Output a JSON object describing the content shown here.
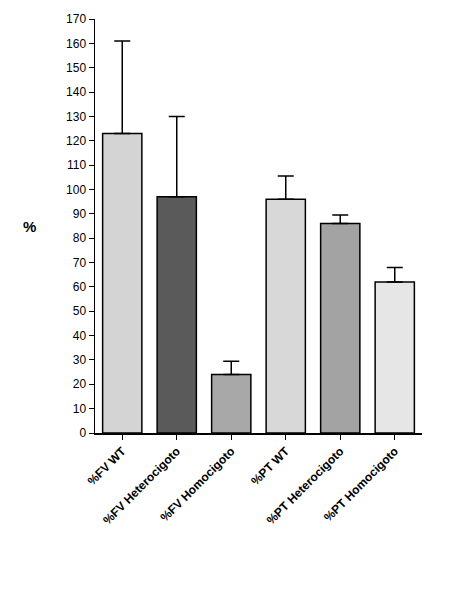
{
  "chart_data": {
    "type": "bar",
    "categories": [
      "%FV WT",
      "%FV Heterocigoto",
      "%FV Homocigoto",
      "%PT WT",
      "%PT Heterocigoto",
      "%PT Homocigoto"
    ],
    "values": [
      123,
      97,
      24,
      96,
      86,
      62
    ],
    "errors": [
      38,
      33,
      5.5,
      9.5,
      3.5,
      6
    ],
    "colors": [
      "#d4d4d4",
      "#5a5a5a",
      "#a8a8a8",
      "#d8d8d8",
      "#a3a3a3",
      "#e6e6e6"
    ],
    "y_label": "%",
    "ylim": [
      0,
      170
    ],
    "yticks": [
      0,
      10,
      20,
      30,
      40,
      50,
      60,
      70,
      80,
      90,
      100,
      110,
      120,
      130,
      140,
      150,
      160,
      170
    ],
    "grid": false
  }
}
